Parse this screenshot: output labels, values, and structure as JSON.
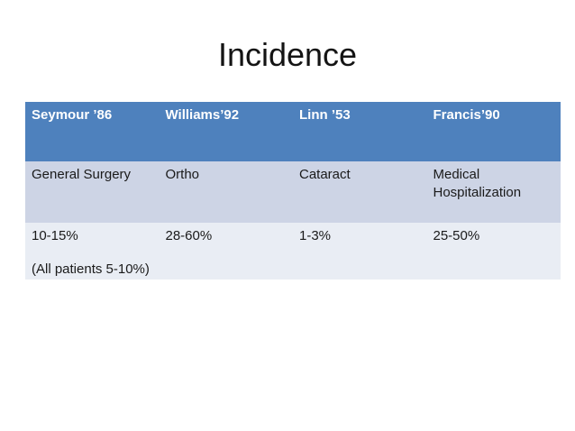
{
  "title": "Incidence",
  "colors": {
    "slide_bg": "#FFFFFF",
    "header_bg": "#4E81BD",
    "header_text": "#FFFFFF",
    "band1_bg": "#CDD4E5",
    "band2_bg": "#E9EDF4",
    "body_text": "#1A1A1A"
  },
  "table": {
    "headers": [
      "Seymour ’86",
      "Williams’92",
      "Linn ’53",
      "Francis’90"
    ],
    "rows": [
      {
        "cells": [
          [
            "General Surgery"
          ],
          [
            "Ortho"
          ],
          [
            "Cataract"
          ],
          [
            "Medical Hospitalization"
          ]
        ]
      },
      {
        "cells": [
          [
            "10-15%",
            "(All patients 5-10%)"
          ],
          [
            "28-60%"
          ],
          [
            "1-3%"
          ],
          [
            "25-50%"
          ]
        ]
      }
    ]
  }
}
